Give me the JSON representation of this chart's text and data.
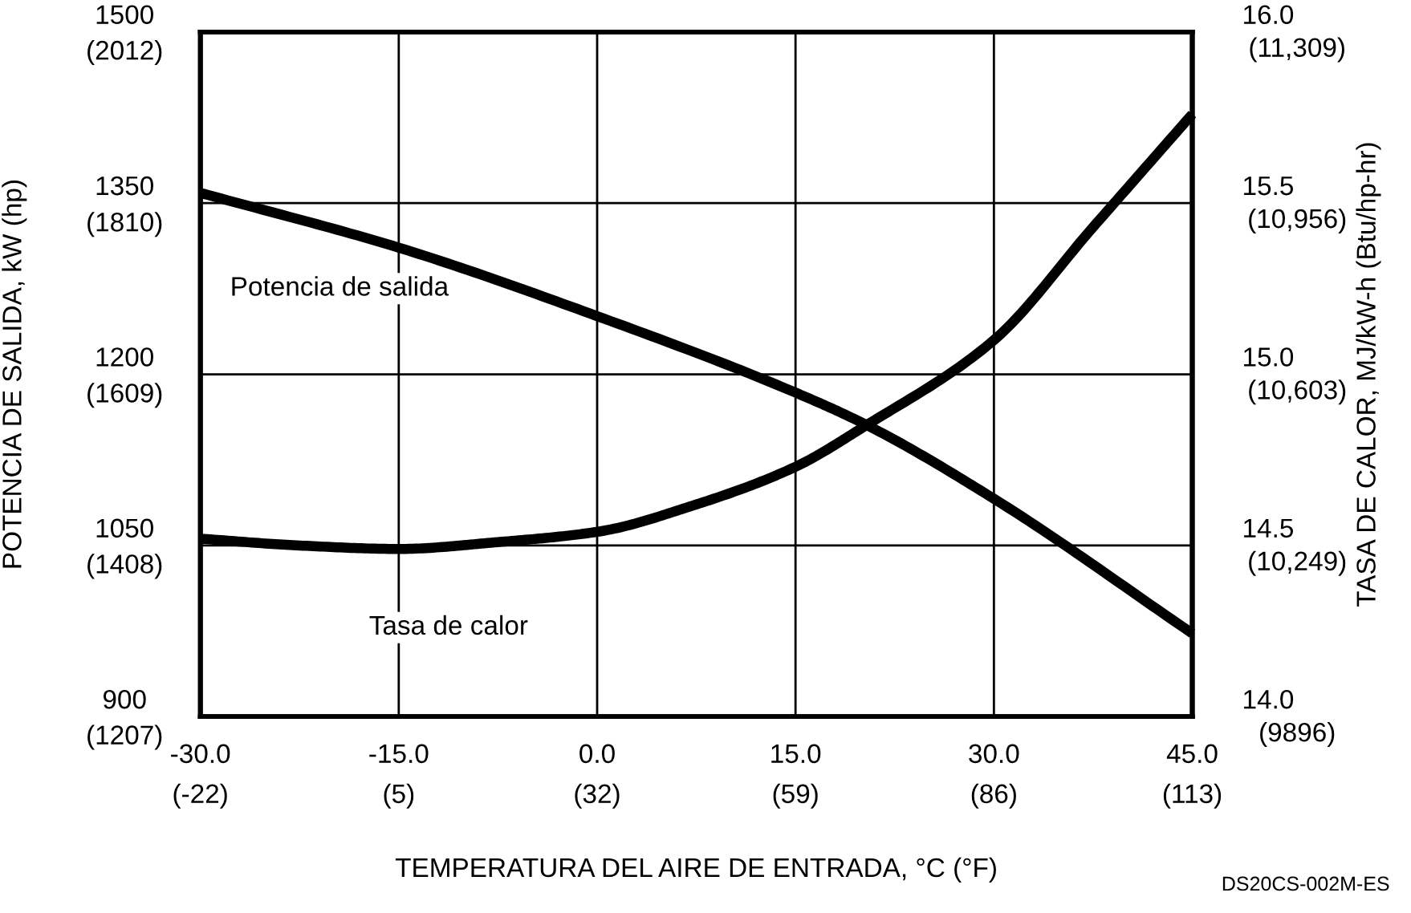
{
  "chart_data": {
    "type": "line",
    "xlabel": "TEMPERATURA DEL AIRE DE ENTRADA, °C (°F)",
    "ylabel": "POTENCIA DE SALIDA, kW (hp)",
    "y2label": "TASA DE CALOR, MJ/kW-h (Btu/hp-hr)",
    "annotations": [
      "DS20CS-002M-ES",
      "(9896)",
      "(10,249)",
      "(10,603)",
      "(10,956)",
      "(11,309)"
    ],
    "xlim": [
      -30,
      45
    ],
    "xticks": [
      {
        "value": -30,
        "label": "-30.0"
      },
      {
        "value": -15,
        "label": "-15.0"
      },
      {
        "value": 0,
        "label": "0.0"
      },
      {
        "value": 15,
        "label": "15.0"
      },
      {
        "value": 30,
        "label": "30.0"
      },
      {
        "value": 45,
        "label": "45.0"
      }
    ],
    "x2lim": [
      -22,
      113
    ],
    "x2ticks": [
      {
        "value": -22,
        "label": "(-22)"
      },
      {
        "value": 5,
        "label": "(5)"
      },
      {
        "value": 32,
        "label": "(32)"
      },
      {
        "value": 59,
        "label": "(59)"
      },
      {
        "value": 86,
        "label": "(86)"
      },
      {
        "value": 113,
        "label": "(113)"
      }
    ],
    "ylim": [
      900,
      1500
    ],
    "yticks": [
      900,
      1050,
      1200,
      1350,
      1500
    ],
    "y3lim": [
      1207,
      2012
    ],
    "y3ticks": [
      {
        "value": 1207,
        "label": "(1207)"
      },
      {
        "value": 1408,
        "label": "(1408)"
      },
      {
        "value": 1609,
        "label": "(1609)"
      },
      {
        "value": 1810,
        "label": "(1810)"
      },
      {
        "value": 2012,
        "label": "(2012)"
      }
    ],
    "y2lim": [
      14.0,
      16.0
    ],
    "y2ticks": [
      {
        "value": 14.0,
        "label": "14.0"
      },
      {
        "value": 14.5,
        "label": "14.5"
      },
      {
        "value": 15.0,
        "label": "15.0"
      },
      {
        "value": 15.5,
        "label": "15.5"
      },
      {
        "value": 16.0,
        "label": "16.0"
      }
    ],
    "grid": true,
    "line_style": "solid",
    "series": [
      {
        "name": "Potencia de salida",
        "color": "#000000",
        "x": [
          -30,
          -15,
          0,
          15,
          20.3,
          30,
          45
        ],
        "values": [
          1359,
          1311,
          1251,
          1184,
          1156,
          1091,
          973
        ]
      },
      {
        "name": "Tasa de calor",
        "color": "#000000",
        "axis": "y2",
        "x": [
          -30,
          -22.5,
          -15,
          -7.5,
          0,
          7.5,
          15,
          20.3,
          30,
          37.5,
          45
        ],
        "values": [
          14.52,
          14.5,
          14.49,
          14.51,
          14.54,
          14.62,
          14.73,
          14.85,
          15.1,
          15.43,
          15.76
        ]
      }
    ]
  }
}
